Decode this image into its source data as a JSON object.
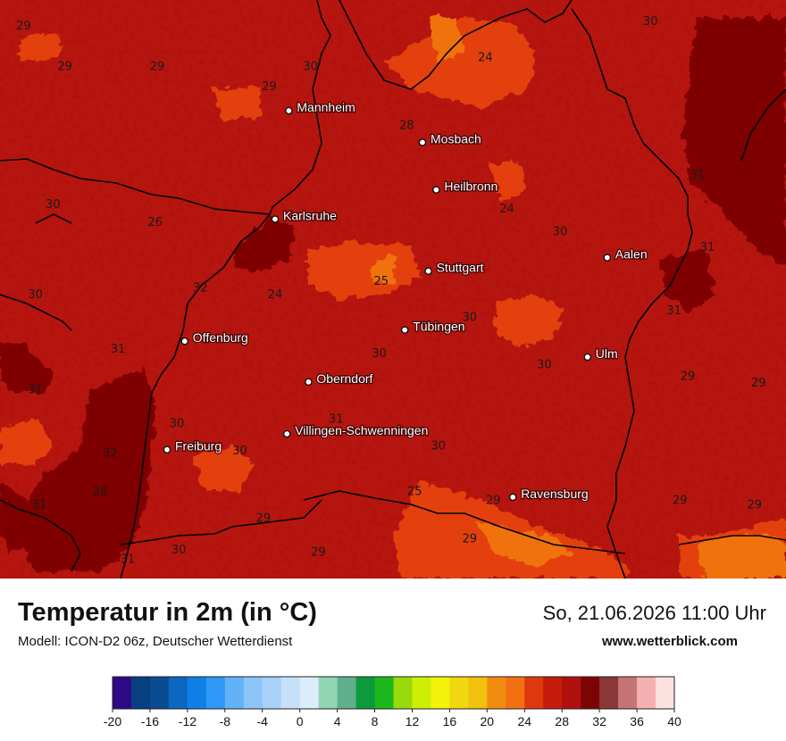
{
  "header": {
    "title": "Temperatur in 2m (in °C)",
    "subtitle": "Modell: ICON-D2 06z, Deutscher Wetterdienst",
    "datetime": "So, 21.06.2026 11:00 Uhr",
    "website": "www.wetterblick.com"
  },
  "cities": [
    {
      "name": "Mannheim",
      "lon": 8.47,
      "lat": 49.49
    },
    {
      "name": "Mosbach",
      "lon": 9.15,
      "lat": 49.35
    },
    {
      "name": "Heilbronn",
      "lon": 9.22,
      "lat": 49.14
    },
    {
      "name": "Karlsruhe",
      "lon": 8.4,
      "lat": 49.01
    },
    {
      "name": "Aalen",
      "lon": 10.09,
      "lat": 48.84
    },
    {
      "name": "Stuttgart",
      "lon": 9.18,
      "lat": 48.78
    },
    {
      "name": "Tübingen",
      "lon": 9.06,
      "lat": 48.52
    },
    {
      "name": "Offenburg",
      "lon": 7.94,
      "lat": 48.47
    },
    {
      "name": "Ulm",
      "lon": 9.99,
      "lat": 48.4
    },
    {
      "name": "Oberndorf",
      "lon": 8.57,
      "lat": 48.29
    },
    {
      "name": "Villingen-Schwenningen",
      "lon": 8.46,
      "lat": 48.06
    },
    {
      "name": "Freiburg",
      "lon": 7.85,
      "lat": 47.99
    },
    {
      "name": "Ravensburg",
      "lon": 9.61,
      "lat": 47.78
    }
  ],
  "temperature_values": [
    {
      "value": 29,
      "lon": 7.12,
      "lat": 49.85
    },
    {
      "value": 29,
      "lon": 7.33,
      "lat": 49.67
    },
    {
      "value": 29,
      "lon": 7.8,
      "lat": 49.67
    },
    {
      "value": 30,
      "lon": 8.58,
      "lat": 49.67
    },
    {
      "value": 29,
      "lon": 8.37,
      "lat": 49.58
    },
    {
      "value": 30,
      "lon": 10.31,
      "lat": 49.87
    },
    {
      "value": 24,
      "lon": 9.47,
      "lat": 49.71
    },
    {
      "value": 28,
      "lon": 9.07,
      "lat": 49.41
    },
    {
      "value": 31,
      "lon": 10.55,
      "lat": 49.19
    },
    {
      "value": 30,
      "lon": 7.27,
      "lat": 49.06
    },
    {
      "value": 26,
      "lon": 7.79,
      "lat": 48.98
    },
    {
      "value": 30,
      "lon": 8.65,
      "lat": 49.0
    },
    {
      "value": 24,
      "lon": 9.58,
      "lat": 49.04
    },
    {
      "value": 30,
      "lon": 9.85,
      "lat": 48.94
    },
    {
      "value": 31,
      "lon": 10.6,
      "lat": 48.87
    },
    {
      "value": 32,
      "lon": 8.02,
      "lat": 48.69
    },
    {
      "value": 24,
      "lon": 8.4,
      "lat": 48.66
    },
    {
      "value": 25,
      "lon": 8.94,
      "lat": 48.72
    },
    {
      "value": 30,
      "lon": 7.18,
      "lat": 48.66
    },
    {
      "value": 30,
      "lon": 9.39,
      "lat": 48.56
    },
    {
      "value": 31,
      "lon": 10.43,
      "lat": 48.59
    },
    {
      "value": 31,
      "lon": 7.6,
      "lat": 48.42
    },
    {
      "value": 30,
      "lon": 8.93,
      "lat": 48.4
    },
    {
      "value": 30,
      "lon": 9.77,
      "lat": 48.35
    },
    {
      "value": 31,
      "lon": 7.18,
      "lat": 48.24
    },
    {
      "value": 29,
      "lon": 10.5,
      "lat": 48.3
    },
    {
      "value": 29,
      "lon": 10.86,
      "lat": 48.27
    },
    {
      "value": 31,
      "lon": 8.71,
      "lat": 48.11
    },
    {
      "value": 30,
      "lon": 7.9,
      "lat": 48.09
    },
    {
      "value": 30,
      "lon": 8.22,
      "lat": 47.97
    },
    {
      "value": 30,
      "lon": 9.23,
      "lat": 47.99
    },
    {
      "value": 32,
      "lon": 7.56,
      "lat": 47.96
    },
    {
      "value": 28,
      "lon": 7.51,
      "lat": 47.79
    },
    {
      "value": 25,
      "lon": 9.11,
      "lat": 47.79
    },
    {
      "value": 29,
      "lon": 9.51,
      "lat": 47.75
    },
    {
      "value": 29,
      "lon": 10.46,
      "lat": 47.75
    },
    {
      "value": 29,
      "lon": 10.84,
      "lat": 47.73
    },
    {
      "value": 31,
      "lon": 7.2,
      "lat": 47.73
    },
    {
      "value": 29,
      "lon": 8.34,
      "lat": 47.67
    },
    {
      "value": 29,
      "lon": 9.39,
      "lat": 47.58
    },
    {
      "value": 30,
      "lon": 7.91,
      "lat": 47.53
    },
    {
      "value": 29,
      "lon": 8.62,
      "lat": 47.52
    },
    {
      "value": 31,
      "lon": 7.65,
      "lat": 47.49
    }
  ],
  "legend": {
    "min": -20,
    "max": 40,
    "unit": "°C",
    "tick_labels": [
      "-20",
      "-16",
      "-12",
      "-8",
      "-4",
      "0",
      "4",
      "8",
      "12",
      "16",
      "20",
      "24",
      "28",
      "32",
      "36",
      "40"
    ],
    "colors": [
      "#2e0a85",
      "#073f80",
      "#0a4c91",
      "#0b67c2",
      "#1080e8",
      "#2f97f5",
      "#63b2f7",
      "#8dc4f7",
      "#a7d1f7",
      "#c6e0f8",
      "#dcecfb",
      "#90d5b4",
      "#5fae8c",
      "#0c9a3c",
      "#1cb81c",
      "#9ad90b",
      "#ccef05",
      "#f2f20a",
      "#f2d60f",
      "#f2c00f",
      "#f28c0f",
      "#f27012",
      "#e0380d",
      "#c51b0d",
      "#b0100d",
      "#7d0404",
      "#8c3737",
      "#c47474",
      "#f5b0b0",
      "#fde0e0"
    ]
  },
  "colors": {
    "base": "#b51610",
    "warm_dark": "#7e0303",
    "cool_orange": "#e43f0f",
    "cooler_orange": "#f07210",
    "borders": "#000000"
  }
}
